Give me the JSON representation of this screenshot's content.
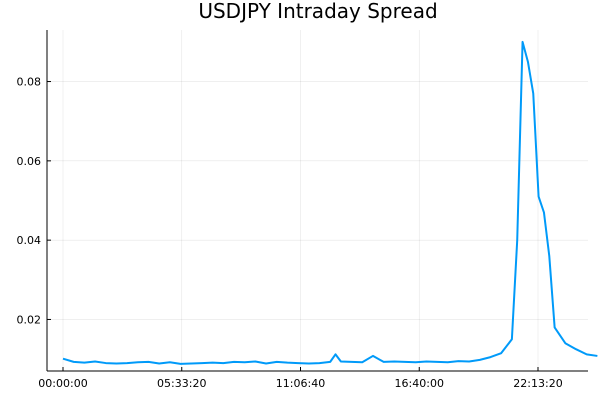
{
  "chart_data": {
    "type": "line",
    "title": "USDJPY Intraday Spread",
    "xlabel": "",
    "ylabel": "",
    "x_ticks": [
      "00:00:00",
      "05:33:20",
      "11:06:40",
      "16:40:00",
      "22:13:20"
    ],
    "y_ticks": [
      "0.02",
      "0.04",
      "0.06",
      "0.08"
    ],
    "ylim": [
      0.007,
      0.093
    ],
    "grid": true,
    "legend": "none",
    "colors": {
      "series": "#009af9",
      "axis": "#000000"
    },
    "series": [
      {
        "x": [
          "00:00:00",
          "00:30:00",
          "01:00:00",
          "01:30:00",
          "02:00:00",
          "02:30:00",
          "03:00:00",
          "03:30:00",
          "04:00:00",
          "04:30:00",
          "05:00:00",
          "05:30:00",
          "06:00:00",
          "06:30:00",
          "07:00:00",
          "07:30:00",
          "08:00:00",
          "08:30:00",
          "09:00:00",
          "09:30:00",
          "10:00:00",
          "10:30:00",
          "11:00:00",
          "11:30:00",
          "12:00:00",
          "12:30:00",
          "12:45:00",
          "13:00:00",
          "13:30:00",
          "14:00:00",
          "14:30:00",
          "15:00:00",
          "15:30:00",
          "16:00:00",
          "16:30:00",
          "17:00:00",
          "17:30:00",
          "18:00:00",
          "18:30:00",
          "19:00:00",
          "19:30:00",
          "20:00:00",
          "20:30:00",
          "21:00:00",
          "21:15:00",
          "21:30:00",
          "21:45:00",
          "22:00:00",
          "22:15:00",
          "22:30:00",
          "22:45:00",
          "23:00:00",
          "23:30:00",
          "24:00:00",
          "24:30:00",
          "25:00:00"
        ],
        "y": [
          0.0101,
          0.0093,
          0.0091,
          0.0094,
          0.009,
          0.0089,
          0.009,
          0.0092,
          0.0093,
          0.0089,
          0.0092,
          0.0088,
          0.0089,
          0.009,
          0.0091,
          0.009,
          0.0093,
          0.0092,
          0.0094,
          0.0089,
          0.0093,
          0.0091,
          0.009,
          0.0089,
          0.009,
          0.0093,
          0.0112,
          0.0094,
          0.0093,
          0.0092,
          0.0108,
          0.0093,
          0.0094,
          0.0093,
          0.0092,
          0.0094,
          0.0093,
          0.0092,
          0.0095,
          0.0094,
          0.0098,
          0.0105,
          0.0115,
          0.015,
          0.04,
          0.09,
          0.085,
          0.077,
          0.051,
          0.047,
          0.036,
          0.018,
          0.014,
          0.0125,
          0.0112,
          0.0108
        ]
      }
    ]
  }
}
